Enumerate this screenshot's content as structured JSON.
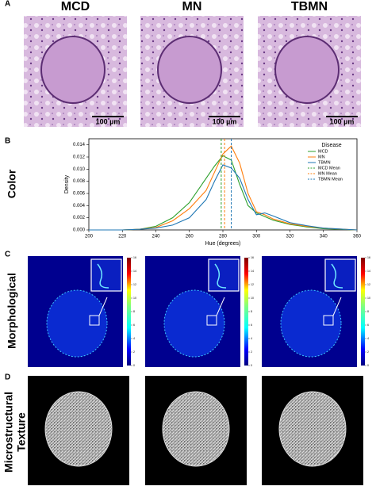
{
  "panel_a": {
    "letter": "A",
    "columns": [
      "MCD",
      "MN",
      "TBMN"
    ],
    "scale_bar": "100 µm"
  },
  "panel_b": {
    "letter": "B",
    "row_label": "Color"
  },
  "chart_data": {
    "type": "line",
    "xlabel": "Hue (degrees)",
    "ylabel": "Density",
    "x": [
      200,
      220,
      230,
      240,
      250,
      260,
      270,
      275,
      280,
      285,
      290,
      295,
      300,
      305,
      310,
      320,
      330,
      340,
      360
    ],
    "series": [
      {
        "name": "MCD",
        "color": "#2ca02c",
        "values": [
          0,
          0,
          0.0001,
          0.0006,
          0.002,
          0.0045,
          0.0085,
          0.0105,
          0.0122,
          0.0115,
          0.0075,
          0.004,
          0.0028,
          0.0022,
          0.0016,
          0.0009,
          0.0005,
          0.0002,
          0
        ]
      },
      {
        "name": "MN",
        "color": "#ff7f0e",
        "values": [
          0,
          0,
          0.0001,
          0.0004,
          0.0015,
          0.0035,
          0.0065,
          0.0095,
          0.0125,
          0.0138,
          0.011,
          0.006,
          0.003,
          0.0025,
          0.0018,
          0.001,
          0.0006,
          0.0003,
          0
        ]
      },
      {
        "name": "TBMN",
        "color": "#1f77b4",
        "values": [
          0,
          0,
          0.0001,
          0.0003,
          0.0008,
          0.002,
          0.005,
          0.008,
          0.0107,
          0.0102,
          0.0085,
          0.005,
          0.0025,
          0.0028,
          0.0023,
          0.0012,
          0.0007,
          0.0003,
          0
        ]
      }
    ],
    "mean_lines": [
      {
        "name": "MCD Mean",
        "color": "#2ca02c",
        "value": 279
      },
      {
        "name": "MN Mean",
        "color": "#ff7f0e",
        "value": 281
      },
      {
        "name": "TBMN Mean",
        "color": "#1f77b4",
        "value": 285
      }
    ],
    "legend_title": "Disease",
    "legend": "upper right",
    "xlim": [
      200,
      360
    ],
    "xticks": [
      200,
      220,
      240,
      260,
      280,
      300,
      320,
      340,
      360
    ],
    "ylim": [
      0,
      0.015
    ],
    "yticks": [
      {
        "value": 0,
        "label": "0.000"
      },
      0.002,
      0.004,
      0.006,
      0.008,
      {
        "value": 0.01,
        "label": "0.010"
      },
      0.012,
      0.014
    ]
  },
  "panel_c": {
    "letter": "C",
    "row_label": "Morphological",
    "colorbar_ticks": [
      0,
      2,
      4,
      6,
      8,
      10,
      12,
      14,
      16
    ]
  },
  "panel_d": {
    "letter": "D",
    "row_label": [
      "Microstructural",
      "Texture"
    ]
  }
}
